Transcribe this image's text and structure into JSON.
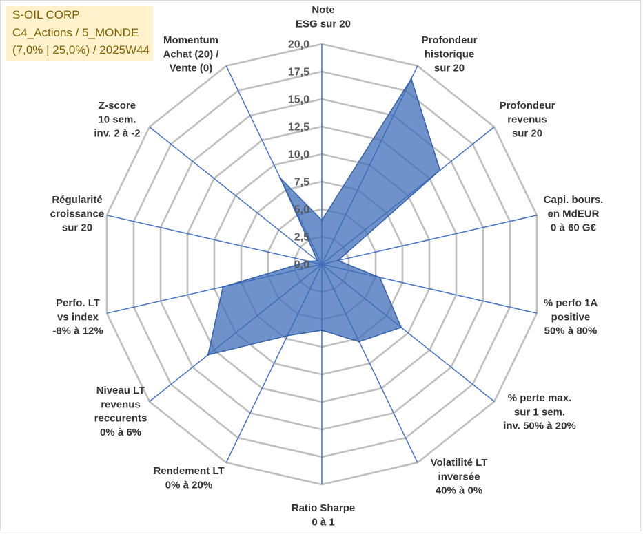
{
  "chart_data": {
    "type": "radar",
    "filled": true,
    "title": "S-OIL CORP",
    "subtitle": [
      "C4_Actions / 5_MONDE",
      "(7,0% | 25,0%) / 2025W44"
    ],
    "categories": [
      [
        "Note",
        "ESG sur 20"
      ],
      [
        "Profondeur",
        "historique",
        "sur 20"
      ],
      [
        "Profondeur",
        "revenus",
        "sur 20"
      ],
      [
        "Capi. bours.",
        "en MdEUR",
        "0 à 60 G€"
      ],
      [
        "% perfo 1A",
        "positive",
        "50% à 80%"
      ],
      [
        "% perte max.",
        "sur 1 sem.",
        "inv. 50% à 20%"
      ],
      [
        "Volatilité LT",
        "inversée",
        "40% à 0%"
      ],
      [
        "Ratio Sharpe",
        "0 à 1"
      ],
      [
        "Rendement LT",
        "0% à 20%"
      ],
      [
        "Niveau LT",
        "revenus",
        "reccurents",
        "0% à 6%"
      ],
      [
        "Perfo. LT",
        "vs index",
        "-8% à 12%"
      ],
      [
        "Régularité",
        "croissance",
        "sur 20"
      ],
      [
        "Z-score",
        "10 sem.",
        "inv. 2 à -2"
      ],
      [
        "Momentum",
        "Achat (20) /",
        "Vente (0)"
      ]
    ],
    "series": [
      {
        "values": [
          4.0,
          18.7,
          13.7,
          1.5,
          5.4,
          9.2,
          7.8,
          6.0,
          7.2,
          13.2,
          9.2,
          1.2,
          0.5,
          8.7
        ]
      }
    ],
    "rlim": [
      0,
      20
    ],
    "r_ticks": [
      0,
      2.5,
      5,
      7.5,
      10,
      12.5,
      15,
      17.5,
      20
    ],
    "tick_labels": [
      "0,0",
      "2,5",
      "5,0",
      "7,5",
      "10,0",
      "12,5",
      "15,0",
      "17,5",
      "20,0"
    ],
    "grid": true,
    "legend": "none"
  },
  "colors": {
    "series_fill": "#3F6DB8",
    "series_line": "#3561AC",
    "axis_line": "#4472C4",
    "grid": "#BFBFBF",
    "title_box_background": "#FFF2CC",
    "title_text": "#7F6000",
    "axis_label_text": "#333333",
    "tick_label_text": "#595959",
    "border": "#D9D9D9"
  }
}
